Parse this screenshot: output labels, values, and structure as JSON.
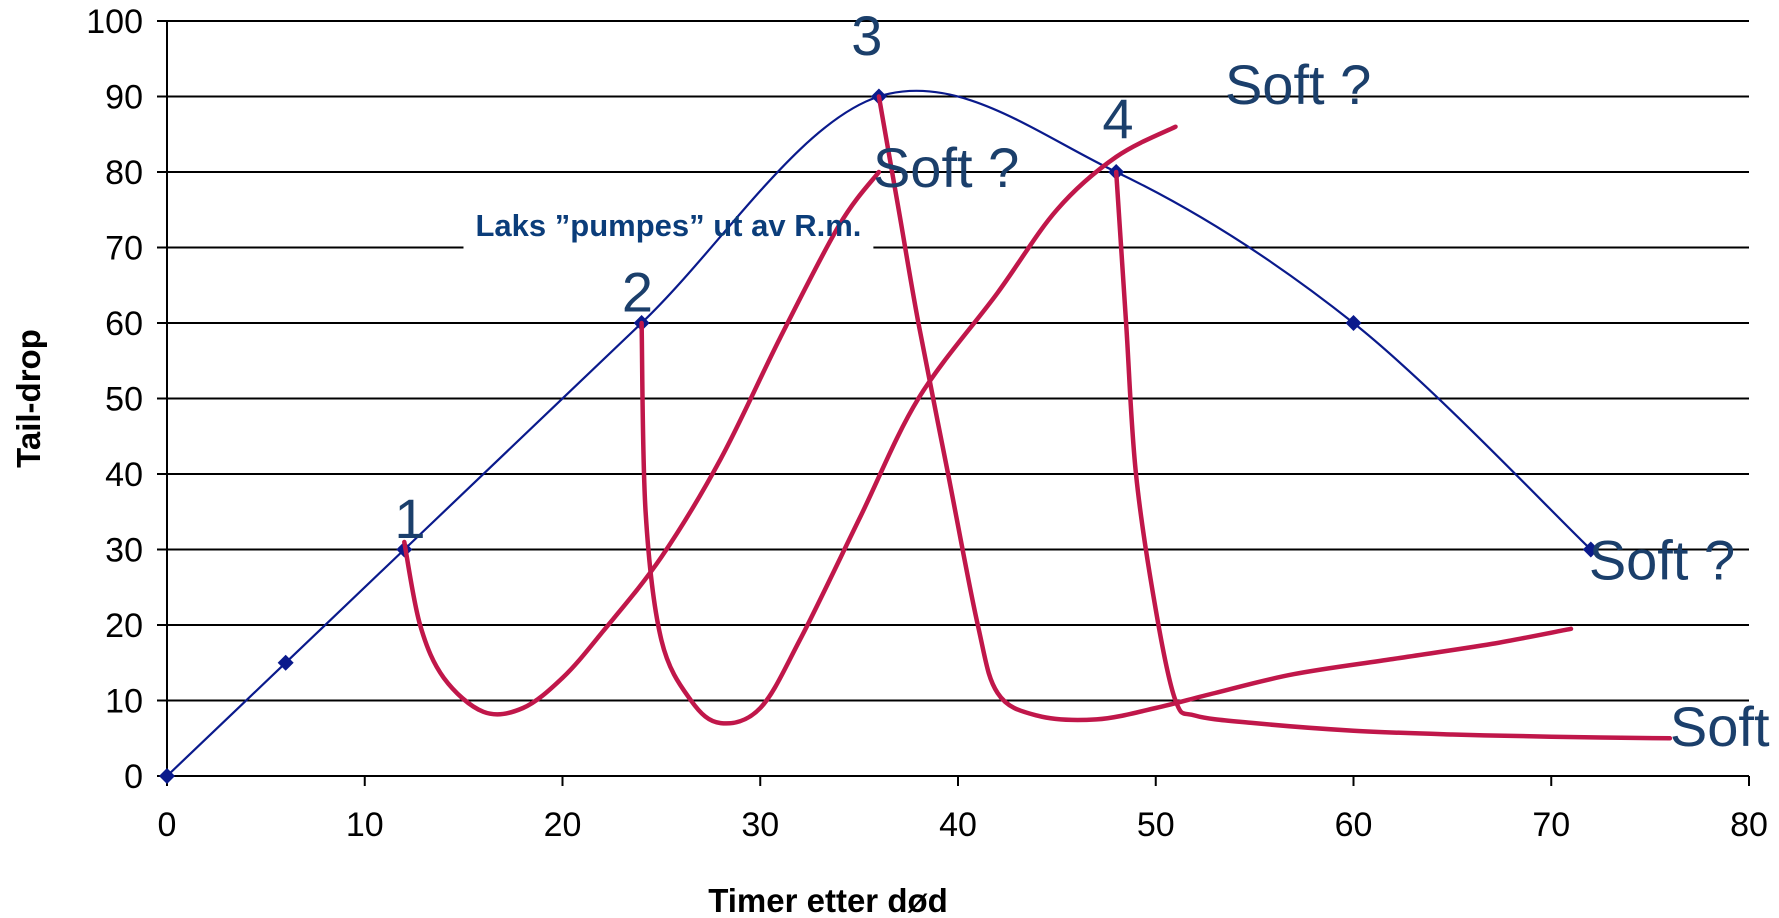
{
  "chart_data": {
    "type": "line",
    "xlabel": "Timer etter død",
    "ylabel": "Tail-drop",
    "xlim": [
      0,
      80
    ],
    "ylim": [
      0,
      100
    ],
    "x_ticks": [
      0,
      10,
      20,
      30,
      40,
      50,
      60,
      70,
      80
    ],
    "y_ticks": [
      0,
      10,
      20,
      30,
      40,
      50,
      60,
      70,
      80,
      90,
      100
    ],
    "grid": "horizontal",
    "colors": {
      "main": "#0A1A8C",
      "marker": "#0A1A8C",
      "curves": "#C0174A",
      "labels": "#1B3F6B",
      "note": "#0B3D7A"
    },
    "series": [
      {
        "kind": "main",
        "points": [
          [
            0,
            0
          ],
          [
            6,
            15
          ],
          [
            12,
            30
          ],
          [
            24,
            60
          ],
          [
            36,
            90
          ],
          [
            48,
            80
          ],
          [
            60,
            60
          ],
          [
            72,
            30
          ]
        ]
      }
    ],
    "curves": [
      {
        "points": [
          [
            12,
            31
          ],
          [
            12.8,
            20
          ],
          [
            14,
            13
          ],
          [
            16,
            8.5
          ],
          [
            18,
            9
          ],
          [
            20,
            13
          ],
          [
            22,
            19
          ],
          [
            25,
            29
          ],
          [
            28,
            42
          ],
          [
            31,
            58
          ],
          [
            34,
            73
          ],
          [
            36,
            80
          ]
        ]
      },
      {
        "points": [
          [
            24,
            60
          ],
          [
            24.2,
            35
          ],
          [
            25,
            18
          ],
          [
            26.5,
            10
          ],
          [
            28,
            7
          ],
          [
            30,
            9
          ],
          [
            32,
            18
          ],
          [
            35,
            34
          ],
          [
            38,
            50
          ],
          [
            42,
            64
          ],
          [
            45,
            75
          ],
          [
            48,
            82
          ],
          [
            51,
            86
          ]
        ]
      },
      {
        "points": [
          [
            36,
            90
          ],
          [
            37,
            75
          ],
          [
            38,
            60
          ],
          [
            39.5,
            40
          ],
          [
            41,
            20
          ],
          [
            42,
            11
          ],
          [
            44,
            8
          ],
          [
            47,
            7.5
          ],
          [
            50,
            9
          ],
          [
            53,
            11
          ],
          [
            57,
            13.5
          ],
          [
            62,
            15.5
          ],
          [
            67,
            17.5
          ],
          [
            71,
            19.5
          ]
        ]
      },
      {
        "points": [
          [
            48,
            80
          ],
          [
            48.5,
            60
          ],
          [
            49,
            40
          ],
          [
            50,
            22
          ],
          [
            51,
            10
          ],
          [
            52,
            8
          ],
          [
            55,
            7
          ],
          [
            60,
            6
          ],
          [
            65,
            5.5
          ],
          [
            70,
            5.2
          ],
          [
            76,
            5
          ]
        ]
      }
    ],
    "annotations": [
      {
        "text": "1",
        "x": 11.5,
        "y": 31.5,
        "size": "large"
      },
      {
        "text": "2",
        "x": 23,
        "y": 61.5,
        "size": "large"
      },
      {
        "text": "3",
        "x": 34.6,
        "y": 95.5,
        "size": "large"
      },
      {
        "text": "4",
        "x": 47.3,
        "y": 84.5,
        "size": "large"
      },
      {
        "text": "Soft ?",
        "x": 35.7,
        "y": 78,
        "size": "large"
      },
      {
        "text": "Soft ?",
        "x": 53.5,
        "y": 89,
        "size": "large"
      },
      {
        "text": "Soft ?",
        "x": 71.9,
        "y": 26,
        "size": "large"
      },
      {
        "text": "Soft ?",
        "x": 76,
        "y": 4,
        "size": "large"
      },
      {
        "text": "Laks ”pumpes” ut av R.m.",
        "x": 15.6,
        "y": 71.5,
        "size": "note"
      }
    ]
  }
}
